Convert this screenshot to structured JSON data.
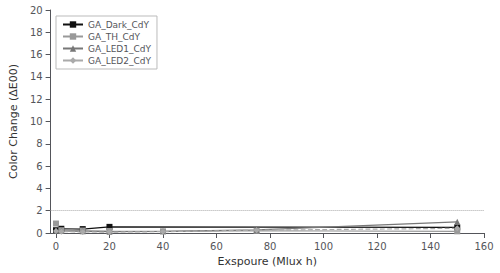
{
  "chart_data": {
    "type": "line",
    "x_label": "Exspoure (Mlux h)",
    "y_label": "Color Change (ΔE00)",
    "xlim": [
      -2,
      160
    ],
    "ylim": [
      0,
      20
    ],
    "xticks": [
      0,
      20,
      40,
      60,
      80,
      100,
      120,
      140,
      160
    ],
    "yticks": [
      0,
      2,
      4,
      6,
      8,
      10,
      12,
      14,
      16,
      18,
      20
    ],
    "hline": 2.0,
    "grid": false,
    "legend": "upper left",
    "series": [
      {
        "name": "GA_Dark_CdY",
        "color": "#111111",
        "marker": "square",
        "line_style": "solid",
        "x": [
          0,
          2,
          10,
          20,
          150
        ],
        "values": [
          0.25,
          0.38,
          0.35,
          0.55,
          0.5
        ]
      },
      {
        "name": "GA_TH_CdY",
        "color": "#999999",
        "marker": "square",
        "line_style": "solid",
        "x": [
          0,
          2,
          10,
          20,
          40,
          75,
          150
        ],
        "values": [
          0.85,
          0.25,
          0.22,
          0.18,
          0.15,
          0.2,
          0.15
        ]
      },
      {
        "name": "GA_LED1_CdY",
        "color": "#777777",
        "marker": "triangle",
        "line_style": "solid",
        "x": [
          0,
          2,
          10,
          20,
          40,
          75,
          150
        ],
        "values": [
          0.22,
          0.18,
          0.15,
          0.12,
          0.15,
          0.28,
          1.0
        ]
      },
      {
        "name": "GA_LED2_CdY",
        "color": "#aaaaaa",
        "marker": "diamond",
        "line_style": "dashed",
        "x": [
          0,
          2,
          10,
          20,
          40,
          75,
          150
        ],
        "values": [
          0.18,
          0.12,
          0.1,
          0.08,
          0.12,
          0.25,
          0.42
        ]
      }
    ]
  }
}
